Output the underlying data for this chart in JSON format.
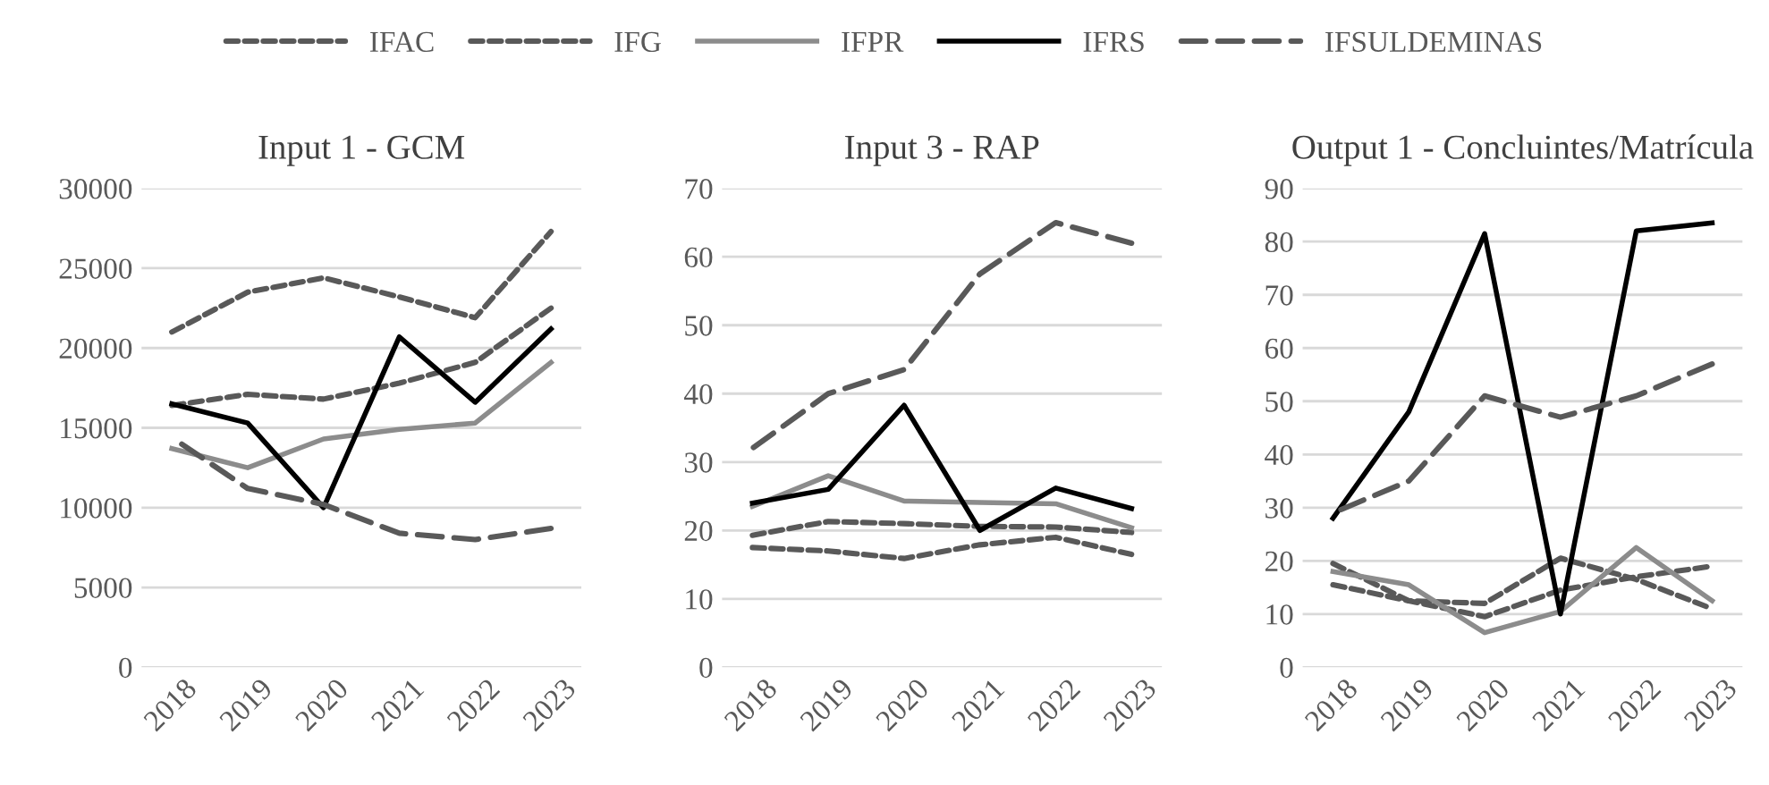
{
  "chart_data": [
    {
      "type": "line",
      "title": "Input 1 - GCM",
      "categories": [
        "2018",
        "2019",
        "2020",
        "2021",
        "2022",
        "2023"
      ],
      "ylim": [
        0,
        30000
      ],
      "yticks": [
        0,
        5000,
        10000,
        15000,
        20000,
        25000,
        30000
      ],
      "grid": "y",
      "legend": "top",
      "series": [
        {
          "name": "IFAC",
          "color": "#595959",
          "line_style": "dotted",
          "values": [
            21000,
            23500,
            24400,
            23200,
            21900,
            27300
          ]
        },
        {
          "name": "IFG",
          "color": "#595959",
          "line_style": "dotted",
          "values": [
            16400,
            17100,
            16800,
            17800,
            19100,
            22500
          ]
        },
        {
          "name": "IFPR",
          "color": "#8c8c8c",
          "line_style": "solid",
          "values": [
            13700,
            12500,
            14300,
            14900,
            15300,
            19100
          ]
        },
        {
          "name": "IFRS",
          "color": "#000000",
          "line_style": "solid",
          "values": [
            16500,
            15300,
            10000,
            20700,
            16600,
            21200
          ]
        },
        {
          "name": "IFSULDEMINAS",
          "color": "#595959",
          "line_style": "dashed",
          "values": [
            14400,
            11200,
            10200,
            8400,
            8000,
            8700
          ]
        }
      ]
    },
    {
      "type": "line",
      "title": "Input 3 - RAP",
      "categories": [
        "2018",
        "2019",
        "2020",
        "2021",
        "2022",
        "2023"
      ],
      "ylim": [
        0,
        70
      ],
      "yticks": [
        0,
        10,
        20,
        30,
        40,
        50,
        60,
        70
      ],
      "grid": "y",
      "series": [
        {
          "name": "IFAC",
          "color": "#595959",
          "line_style": "dotted",
          "values": [
            19.3,
            21.3,
            21,
            20.6,
            20.5,
            19.7
          ]
        },
        {
          "name": "IFG",
          "color": "#595959",
          "line_style": "dotted",
          "values": [
            17.5,
            17,
            15.9,
            17.9,
            19,
            16.5
          ]
        },
        {
          "name": "IFPR",
          "color": "#8c8c8c",
          "line_style": "solid",
          "values": [
            23.5,
            28,
            24.3,
            24.1,
            23.9,
            20.4
          ]
        },
        {
          "name": "IFRS",
          "color": "#000000",
          "line_style": "solid",
          "values": [
            24,
            26,
            38.3,
            20,
            26.2,
            23.2
          ]
        },
        {
          "name": "IFSULDEMINAS",
          "color": "#595959",
          "line_style": "dashed",
          "values": [
            32,
            40,
            43.5,
            57.5,
            65,
            62
          ]
        }
      ]
    },
    {
      "type": "line",
      "title": "Output 1 - Concluintes/Matrícula",
      "categories": [
        "2018",
        "2019",
        "2020",
        "2021",
        "2022",
        "2023"
      ],
      "ylim": [
        0,
        90
      ],
      "yticks": [
        0,
        10,
        20,
        30,
        40,
        50,
        60,
        70,
        80,
        90
      ],
      "grid": "y",
      "series": [
        {
          "name": "IFAC",
          "color": "#595959",
          "line_style": "dotted",
          "values": [
            19.5,
            12.5,
            12,
            20.5,
            16.5,
            11
          ]
        },
        {
          "name": "IFG",
          "color": "#595959",
          "line_style": "dotted",
          "values": [
            15.5,
            12.5,
            9.5,
            14.5,
            17,
            19
          ]
        },
        {
          "name": "IFPR",
          "color": "#8c8c8c",
          "line_style": "solid",
          "values": [
            18,
            15.5,
            6.5,
            10.5,
            22.5,
            12.5
          ]
        },
        {
          "name": "IFRS",
          "color": "#000000",
          "line_style": "solid",
          "values": [
            28,
            48,
            81.5,
            10,
            82,
            83.5
          ]
        },
        {
          "name": "IFSULDEMINAS",
          "color": "#595959",
          "line_style": "dashed",
          "values": [
            29,
            35,
            51,
            47,
            51,
            57
          ]
        }
      ]
    }
  ]
}
